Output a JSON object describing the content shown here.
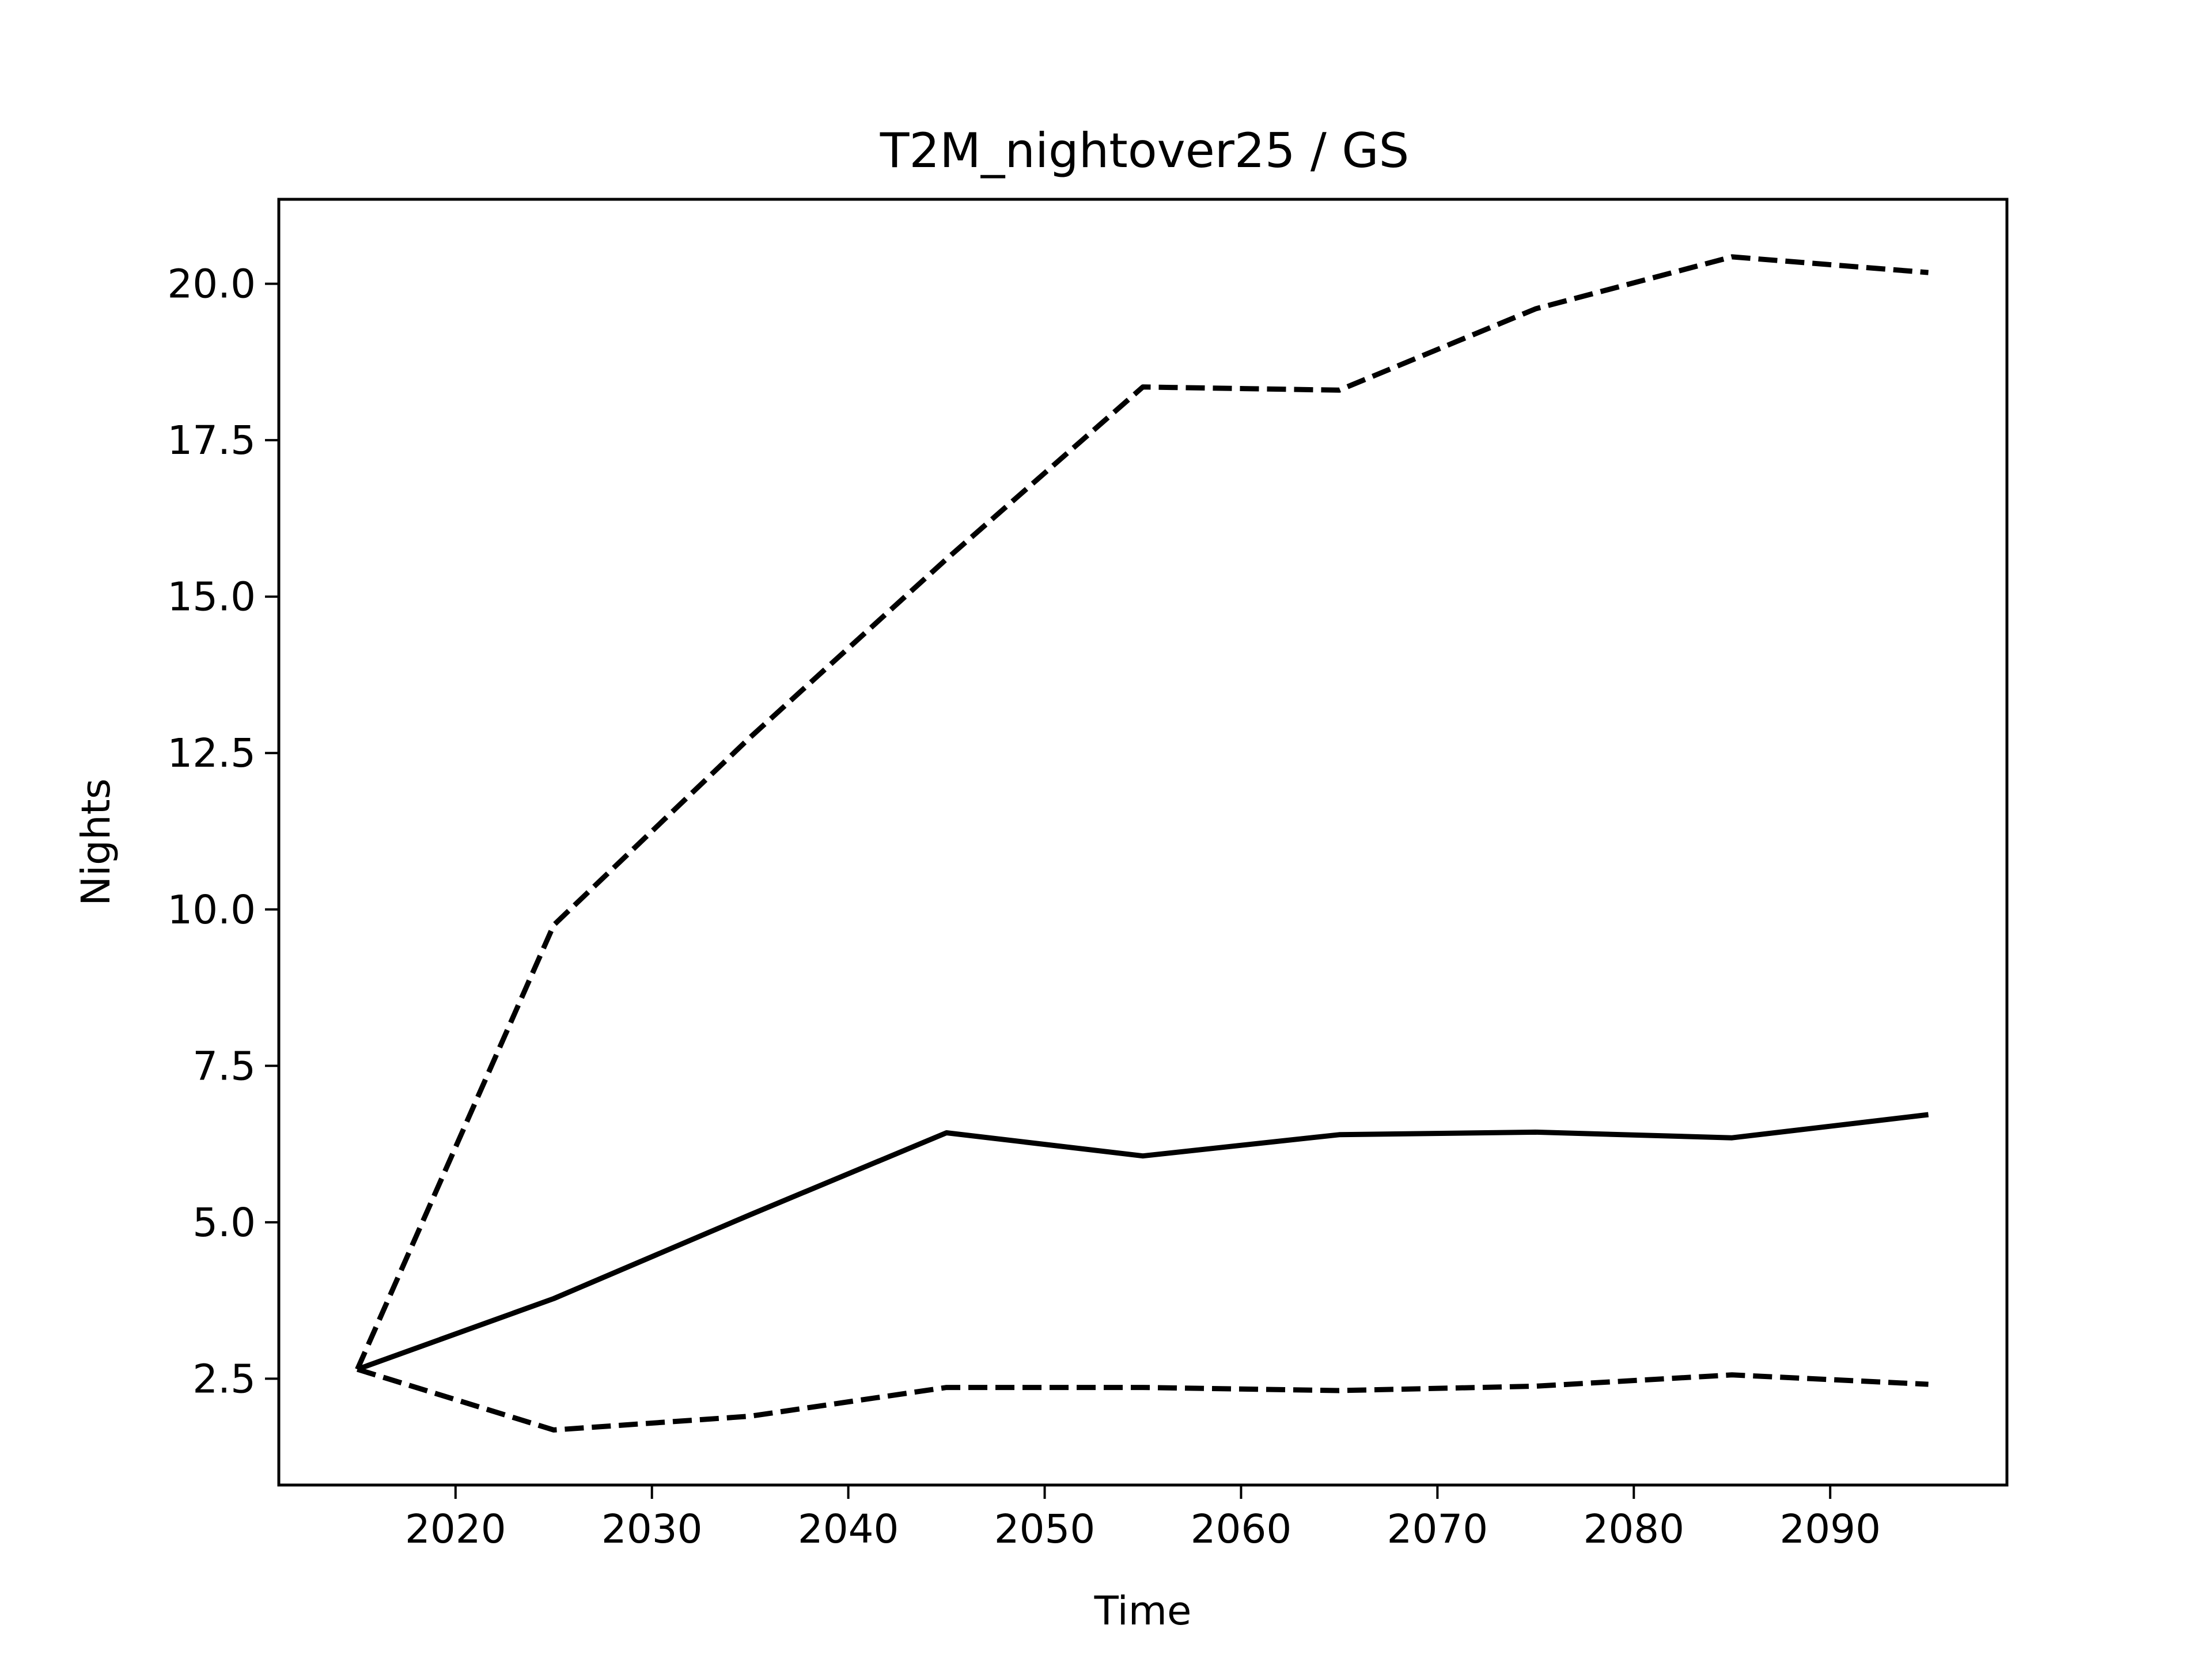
{
  "chart_data": {
    "type": "line",
    "title": "T2M_nightover25 / GS",
    "xlabel": "Time",
    "ylabel": "Nights",
    "xlim": [
      2011,
      2099
    ],
    "ylim": [
      0.8,
      21.35
    ],
    "xticks": [
      2020,
      2030,
      2040,
      2050,
      2060,
      2070,
      2080,
      2090
    ],
    "yticks": [
      2.5,
      5.0,
      7.5,
      10.0,
      12.5,
      15.0,
      17.5,
      20.0
    ],
    "ytick_labels": [
      "2.5",
      "5.0",
      "7.5",
      "10.0",
      "12.5",
      "15.0",
      "17.5",
      "20.0"
    ],
    "grid": false,
    "line_color": "#000000",
    "x": [
      2015,
      2025,
      2035,
      2045,
      2055,
      2065,
      2075,
      2085,
      2095
    ],
    "series": [
      {
        "style": "solid",
        "values": [
          2.65,
          3.78,
          5.12,
          6.43,
          6.06,
          6.4,
          6.44,
          6.35,
          6.72
        ]
      },
      {
        "style": "dashed",
        "values": [
          2.65,
          9.75,
          12.75,
          15.6,
          18.35,
          18.3,
          19.6,
          20.43,
          20.18
        ]
      },
      {
        "style": "dashed",
        "values": [
          2.65,
          1.68,
          1.9,
          2.36,
          2.36,
          2.31,
          2.38,
          2.56,
          2.41
        ]
      }
    ]
  }
}
